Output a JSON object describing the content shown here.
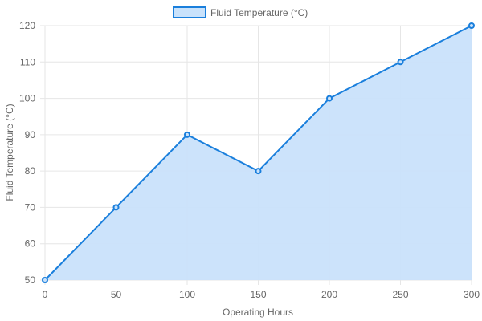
{
  "chart_data": {
    "type": "area",
    "x": [
      0,
      50,
      100,
      150,
      200,
      250,
      300
    ],
    "series": [
      {
        "name": "Fluid Temperature (°C)",
        "values": [
          50,
          70,
          90,
          80,
          100,
          110,
          120
        ]
      }
    ],
    "xlabel": "Operating Hours",
    "ylabel": "Fluid Temperature (°C)",
    "xlim": [
      0,
      300
    ],
    "ylim": [
      50,
      120
    ],
    "xticks": [
      0,
      50,
      100,
      150,
      200,
      250,
      300
    ],
    "yticks": [
      50,
      60,
      70,
      80,
      90,
      100,
      110,
      120
    ],
    "grid": true,
    "legend_position": "top-center",
    "colors": {
      "line": "#1a7fdc",
      "fill": "#c9e2fb",
      "grid": "#e6e6e6"
    }
  }
}
